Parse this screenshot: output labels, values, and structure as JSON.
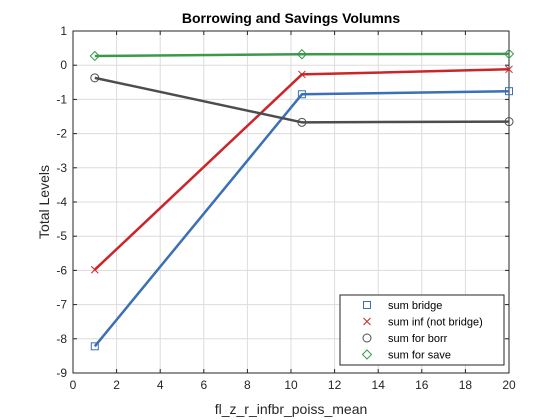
{
  "chart_data": {
    "type": "line",
    "title": "Borrowing and Savings Volumns",
    "xlabel": "fl_z_r_infbr_poiss_mean",
    "ylabel": "Total Levels",
    "xlim": [
      0,
      20
    ],
    "ylim": [
      -9,
      1
    ],
    "xticks": [
      0,
      2,
      4,
      6,
      8,
      10,
      12,
      14,
      16,
      18,
      20
    ],
    "yticks": [
      -9,
      -8,
      -7,
      -6,
      -5,
      -4,
      -3,
      -2,
      -1,
      0,
      1
    ],
    "grid": true,
    "legend_position": "bottom-right",
    "x": [
      1,
      10.5,
      20
    ],
    "series": [
      {
        "name": "sum bridge",
        "marker": "square",
        "color": "#3b6fb6",
        "values": [
          -8.22,
          -0.85,
          -0.76
        ]
      },
      {
        "name": "sum inf (not bridge)",
        "marker": "x",
        "color": "#cc2529",
        "values": [
          -5.98,
          -0.27,
          -0.12
        ]
      },
      {
        "name": "sum for borr",
        "marker": "circle",
        "color": "#4d4d4d",
        "values": [
          -0.37,
          -1.67,
          -1.65
        ]
      },
      {
        "name": "sum for save",
        "marker": "diamond",
        "color": "#3a9a4a",
        "values": [
          0.27,
          0.32,
          0.33
        ]
      }
    ]
  }
}
